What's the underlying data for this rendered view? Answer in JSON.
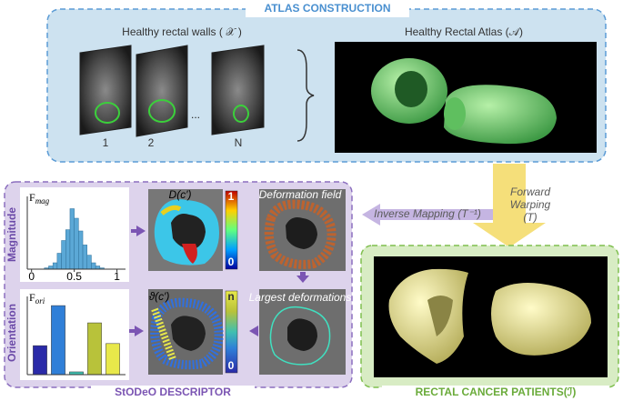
{
  "atlas": {
    "title": "ATLAS CONSTRUCTION",
    "walls_label": "Healthy rectal walls ( 𝒳 )",
    "atlas_label": "Healthy Rectal Atlas (𝒜)",
    "slice_labels": [
      "1",
      "2",
      "N"
    ],
    "ellipsis": "..."
  },
  "mapping": {
    "inverse": "Inverse Mapping (T⁻¹)",
    "forward": [
      "Forward",
      "Warping",
      "(T)"
    ]
  },
  "descriptor": {
    "title": "StODeO DESCRIPTOR",
    "magnitude_label": "Magnitude",
    "orientation_label": "Orientation",
    "d_label": "D(c′)",
    "theta_label": "ϑ(c′)",
    "deformation_field": "Deformation field",
    "largest_deformations": "Largest deformations",
    "colorbar_d": [
      "1",
      "0"
    ],
    "colorbar_theta": [
      "n",
      "0"
    ]
  },
  "patients": {
    "title": "RECTAL CANCER PATIENTS(ℐ)"
  },
  "chart_data": [
    {
      "type": "histogram",
      "title": "F",
      "title_sub": "mag",
      "color": "#5ba8d6",
      "bins": [
        0.15,
        0.2,
        0.25,
        0.3,
        0.35,
        0.4,
        0.45,
        0.5,
        0.55,
        0.6,
        0.65,
        0.7,
        0.75,
        0.8,
        0.85
      ],
      "counts": [
        0.02,
        0.05,
        0.1,
        0.25,
        0.45,
        0.62,
        0.95,
        0.8,
        0.6,
        0.38,
        0.22,
        0.1,
        0.05,
        0.02
      ],
      "xlim": [
        -0.05,
        1.1
      ],
      "xticks": [
        0,
        0.5,
        1
      ],
      "ylim": [
        0,
        1
      ]
    },
    {
      "type": "bar",
      "title": "F",
      "title_sub": "ori",
      "values": [
        0.42,
        1.0,
        0.04,
        0.75,
        0.45
      ],
      "colors": [
        "#2a2aa8",
        "#2f7fd8",
        "#3fbfb0",
        "#b8c23a",
        "#e8e84a"
      ],
      "ylim": [
        0,
        1.08
      ]
    }
  ]
}
